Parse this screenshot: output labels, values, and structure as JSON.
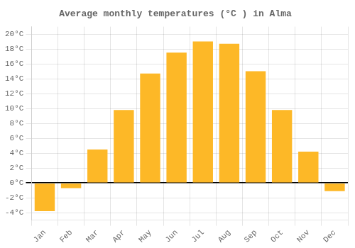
{
  "chart_data": {
    "type": "bar",
    "title": "Average monthly temperatures (°C ) in Alma",
    "categories": [
      "Jan",
      "Feb",
      "Mar",
      "Apr",
      "May",
      "Jun",
      "Jul",
      "Aug",
      "Sep",
      "Oct",
      "Nov",
      "Dec"
    ],
    "values": [
      -3.8,
      -0.7,
      4.5,
      9.8,
      14.7,
      17.5,
      19.0,
      18.7,
      15.0,
      9.8,
      4.2,
      -1.1
    ],
    "color": "#FDB827",
    "ylim": [
      -5,
      21
    ],
    "yticks": [
      {
        "value": -4,
        "label": "-4°C"
      },
      {
        "value": -2,
        "label": "-2°C"
      },
      {
        "value": 0,
        "label": "0°C"
      },
      {
        "value": 2,
        "label": "2°C"
      },
      {
        "value": 4,
        "label": "4°C"
      },
      {
        "value": 6,
        "label": "6°C"
      },
      {
        "value": 8,
        "label": "8°C"
      },
      {
        "value": 10,
        "label": "10°C"
      },
      {
        "value": 12,
        "label": "12°C"
      },
      {
        "value": 14,
        "label": "14°C"
      },
      {
        "value": 16,
        "label": "16°C"
      },
      {
        "value": 18,
        "label": "18°C"
      },
      {
        "value": 20,
        "label": "20°C"
      }
    ],
    "grid": true
  }
}
